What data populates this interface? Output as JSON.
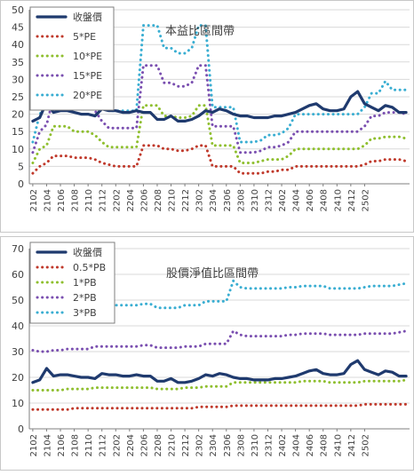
{
  "x_ticks": [
    "2102",
    "2104",
    "2106",
    "2108",
    "2110",
    "2112",
    "2202",
    "2204",
    "2206",
    "2208",
    "2210",
    "2212",
    "2302",
    "2304",
    "2306",
    "2308",
    "2310",
    "2312",
    "2402",
    "2404",
    "2406",
    "2408",
    "2410",
    "2412",
    "2502"
  ],
  "colors": {
    "close": "#1f3a6e",
    "m1": "#c0392b",
    "m2": "#8fbf2f",
    "m3": "#7a4fb0",
    "m4": "#3aaed2",
    "grid": "#d9d9d9",
    "axis": "#7f7f7f",
    "text": "#404040"
  },
  "chart_data": [
    {
      "type": "line",
      "title": "本益比區間帶",
      "xlabel": "",
      "ylabel": "",
      "ylim": [
        0,
        50
      ],
      "yticks": [
        0,
        5,
        10,
        15,
        20,
        25,
        30,
        35,
        40,
        45,
        50
      ],
      "grid": true,
      "legend": "top-left",
      "series": [
        {
          "name": "收盤價",
          "color": "close",
          "style": "solid",
          "values": [
            18,
            19,
            23.5,
            20.5,
            21,
            21,
            20.5,
            20,
            20,
            19.5,
            21.5,
            21,
            21,
            20.5,
            20.5,
            21,
            20.5,
            20.5,
            18.5,
            18.5,
            19.5,
            18,
            18,
            18.5,
            19.5,
            21,
            20.5,
            21.5,
            21,
            20,
            19.5,
            19.5,
            19,
            19,
            19,
            19.5,
            19.5,
            20,
            20.5,
            21.5,
            22.5,
            23,
            21.5,
            21,
            21,
            21.5,
            25,
            26.5,
            23,
            22,
            21,
            22.5,
            22,
            20.5,
            20.5
          ]
        },
        {
          "name": "5*PE",
          "color": "m1",
          "style": "dotted",
          "values": [
            3,
            5,
            6,
            8,
            8,
            8,
            7.5,
            7.5,
            7.5,
            7,
            6,
            5.5,
            5,
            5,
            5,
            5,
            11,
            11,
            11,
            10,
            10,
            9.5,
            9.5,
            10,
            11,
            11,
            5,
            5,
            5,
            5,
            3,
            3,
            3,
            3,
            3.5,
            3.5,
            4,
            4,
            5,
            5,
            5,
            5,
            5,
            5,
            5,
            5,
            5,
            5,
            5.5,
            6.5,
            6.5,
            7,
            7,
            7,
            6.5
          ]
        },
        {
          "name": "10*PE",
          "color": "m2",
          "style": "dotted",
          "values": [
            6,
            10,
            11,
            16.5,
            16.5,
            16.5,
            15,
            15,
            15,
            14,
            12,
            10.5,
            10.5,
            10.5,
            10.5,
            10.5,
            22.5,
            22.5,
            22.5,
            19.5,
            19.5,
            19,
            19,
            19.5,
            22.5,
            22.5,
            11,
            11,
            11,
            11,
            6,
            6,
            6,
            6.5,
            7,
            7,
            7,
            8,
            10,
            10,
            10,
            10,
            10,
            10,
            10,
            10,
            10,
            10,
            11,
            13,
            13,
            13.5,
            13.5,
            13.5,
            13
          ]
        },
        {
          "name": "15*PE",
          "color": "m3",
          "style": "dotted",
          "values": [
            9,
            15,
            17,
            25,
            25,
            25,
            22.5,
            22.5,
            22.5,
            21,
            18,
            16,
            16,
            16,
            16,
            16,
            34,
            34,
            34,
            29,
            29,
            28,
            28,
            29,
            34,
            34,
            16.5,
            16.5,
            16.5,
            16.5,
            9,
            9,
            9,
            9.5,
            10.5,
            10.5,
            11,
            12,
            15,
            15,
            15,
            15,
            15,
            15,
            15,
            15,
            15,
            15,
            16.5,
            19.5,
            19.5,
            20.5,
            20.5,
            20.5,
            20
          ]
        },
        {
          "name": "20*PE",
          "color": "m4",
          "style": "dotted",
          "values": [
            12,
            20,
            22.5,
            33,
            33,
            33,
            30,
            30,
            30,
            28,
            24,
            21,
            21,
            21,
            21,
            21,
            45.5,
            45.5,
            45.5,
            39,
            39,
            37.5,
            37.5,
            39,
            45.5,
            45.5,
            22,
            22,
            22,
            22,
            12,
            12,
            12,
            12.5,
            14,
            14,
            14.5,
            16,
            20,
            20,
            20,
            20,
            20,
            20,
            20,
            20,
            20,
            20,
            22,
            26,
            26,
            29.5,
            27,
            27,
            27
          ]
        }
      ]
    },
    {
      "type": "line",
      "title": "股價淨值比區間帶",
      "xlabel": "",
      "ylabel": "",
      "ylim": [
        0,
        70
      ],
      "yticks": [
        0,
        10,
        20,
        30,
        40,
        50,
        60,
        70
      ],
      "grid": true,
      "legend": "top-left",
      "series": [
        {
          "name": "收盤價",
          "color": "close",
          "style": "solid",
          "values": [
            18,
            19,
            23.5,
            20.5,
            21,
            21,
            20.5,
            20,
            20,
            19.5,
            21.5,
            21,
            21,
            20.5,
            20.5,
            21,
            20.5,
            20.5,
            18.5,
            18.5,
            19.5,
            18,
            18,
            18.5,
            19.5,
            21,
            20.5,
            21.5,
            21,
            20,
            19.5,
            19.5,
            19,
            19,
            19,
            19.5,
            19.5,
            20,
            20.5,
            21.5,
            22.5,
            23,
            21.5,
            21,
            21,
            21.5,
            25,
            26.5,
            23,
            22,
            21,
            22.5,
            22,
            20.5,
            20.5
          ]
        },
        {
          "name": "0.5*PB",
          "color": "m1",
          "style": "dotted",
          "values": [
            7.5,
            7.5,
            7.5,
            7.5,
            7.5,
            7.5,
            8,
            8,
            8,
            8,
            8,
            8,
            8,
            8,
            8,
            8,
            8,
            8,
            8,
            8,
            8,
            8,
            8,
            8,
            8.5,
            8.5,
            8.5,
            8.5,
            8.5,
            9,
            9,
            9,
            9,
            9,
            9,
            9,
            9,
            9,
            9,
            9,
            9,
            9,
            9,
            9,
            9,
            9,
            9,
            9,
            9.5,
            9.5,
            9.5,
            9.5,
            9.5,
            9.5,
            9.5
          ]
        },
        {
          "name": "1*PB",
          "color": "m2",
          "style": "dotted",
          "values": [
            15,
            15,
            15,
            15,
            15,
            15.5,
            15.5,
            15.5,
            15.5,
            16,
            16,
            16,
            16,
            16,
            16,
            16,
            16,
            16,
            15.5,
            15.5,
            15.5,
            15.5,
            16,
            16,
            16,
            16.5,
            16.5,
            16.5,
            16.5,
            18,
            18,
            18,
            18,
            18,
            18,
            18,
            18,
            18,
            18,
            18.5,
            18.5,
            18.5,
            18.5,
            18,
            18,
            18,
            18,
            18,
            18.5,
            18.5,
            18.5,
            18.5,
            18.5,
            18.5,
            19
          ]
        },
        {
          "name": "2*PB",
          "color": "m3",
          "style": "dotted",
          "values": [
            30.5,
            30,
            30,
            30.5,
            30.5,
            31,
            31,
            31,
            31,
            32,
            32,
            32,
            32,
            32,
            32,
            32,
            32.5,
            32.5,
            31.5,
            31.5,
            31.5,
            31.5,
            32,
            32,
            32,
            33,
            33,
            33,
            33,
            38,
            36.5,
            36,
            36,
            36,
            36,
            36,
            36,
            36.5,
            36.5,
            37,
            37,
            37,
            37,
            36.5,
            36.5,
            36.5,
            36.5,
            36.5,
            37,
            37,
            37,
            37,
            37,
            37.5,
            38
          ]
        },
        {
          "name": "3*PB",
          "color": "m4",
          "style": "dotted",
          "values": [
            45,
            45.5,
            45.5,
            45.5,
            45.5,
            46,
            46,
            46.5,
            46.5,
            47.5,
            47.5,
            47.5,
            48,
            48,
            48,
            48,
            48.5,
            48.5,
            47,
            47,
            47,
            47,
            48,
            48,
            48,
            49.5,
            49.5,
            49.5,
            49.5,
            57.5,
            55,
            54.5,
            54.5,
            54.5,
            54.5,
            54.5,
            54.5,
            55,
            55,
            55.5,
            55.5,
            55.5,
            55.5,
            54.5,
            54.5,
            54.5,
            54.5,
            54.5,
            55,
            55.5,
            55.5,
            55.5,
            55.5,
            56,
            56.5
          ]
        }
      ]
    }
  ]
}
